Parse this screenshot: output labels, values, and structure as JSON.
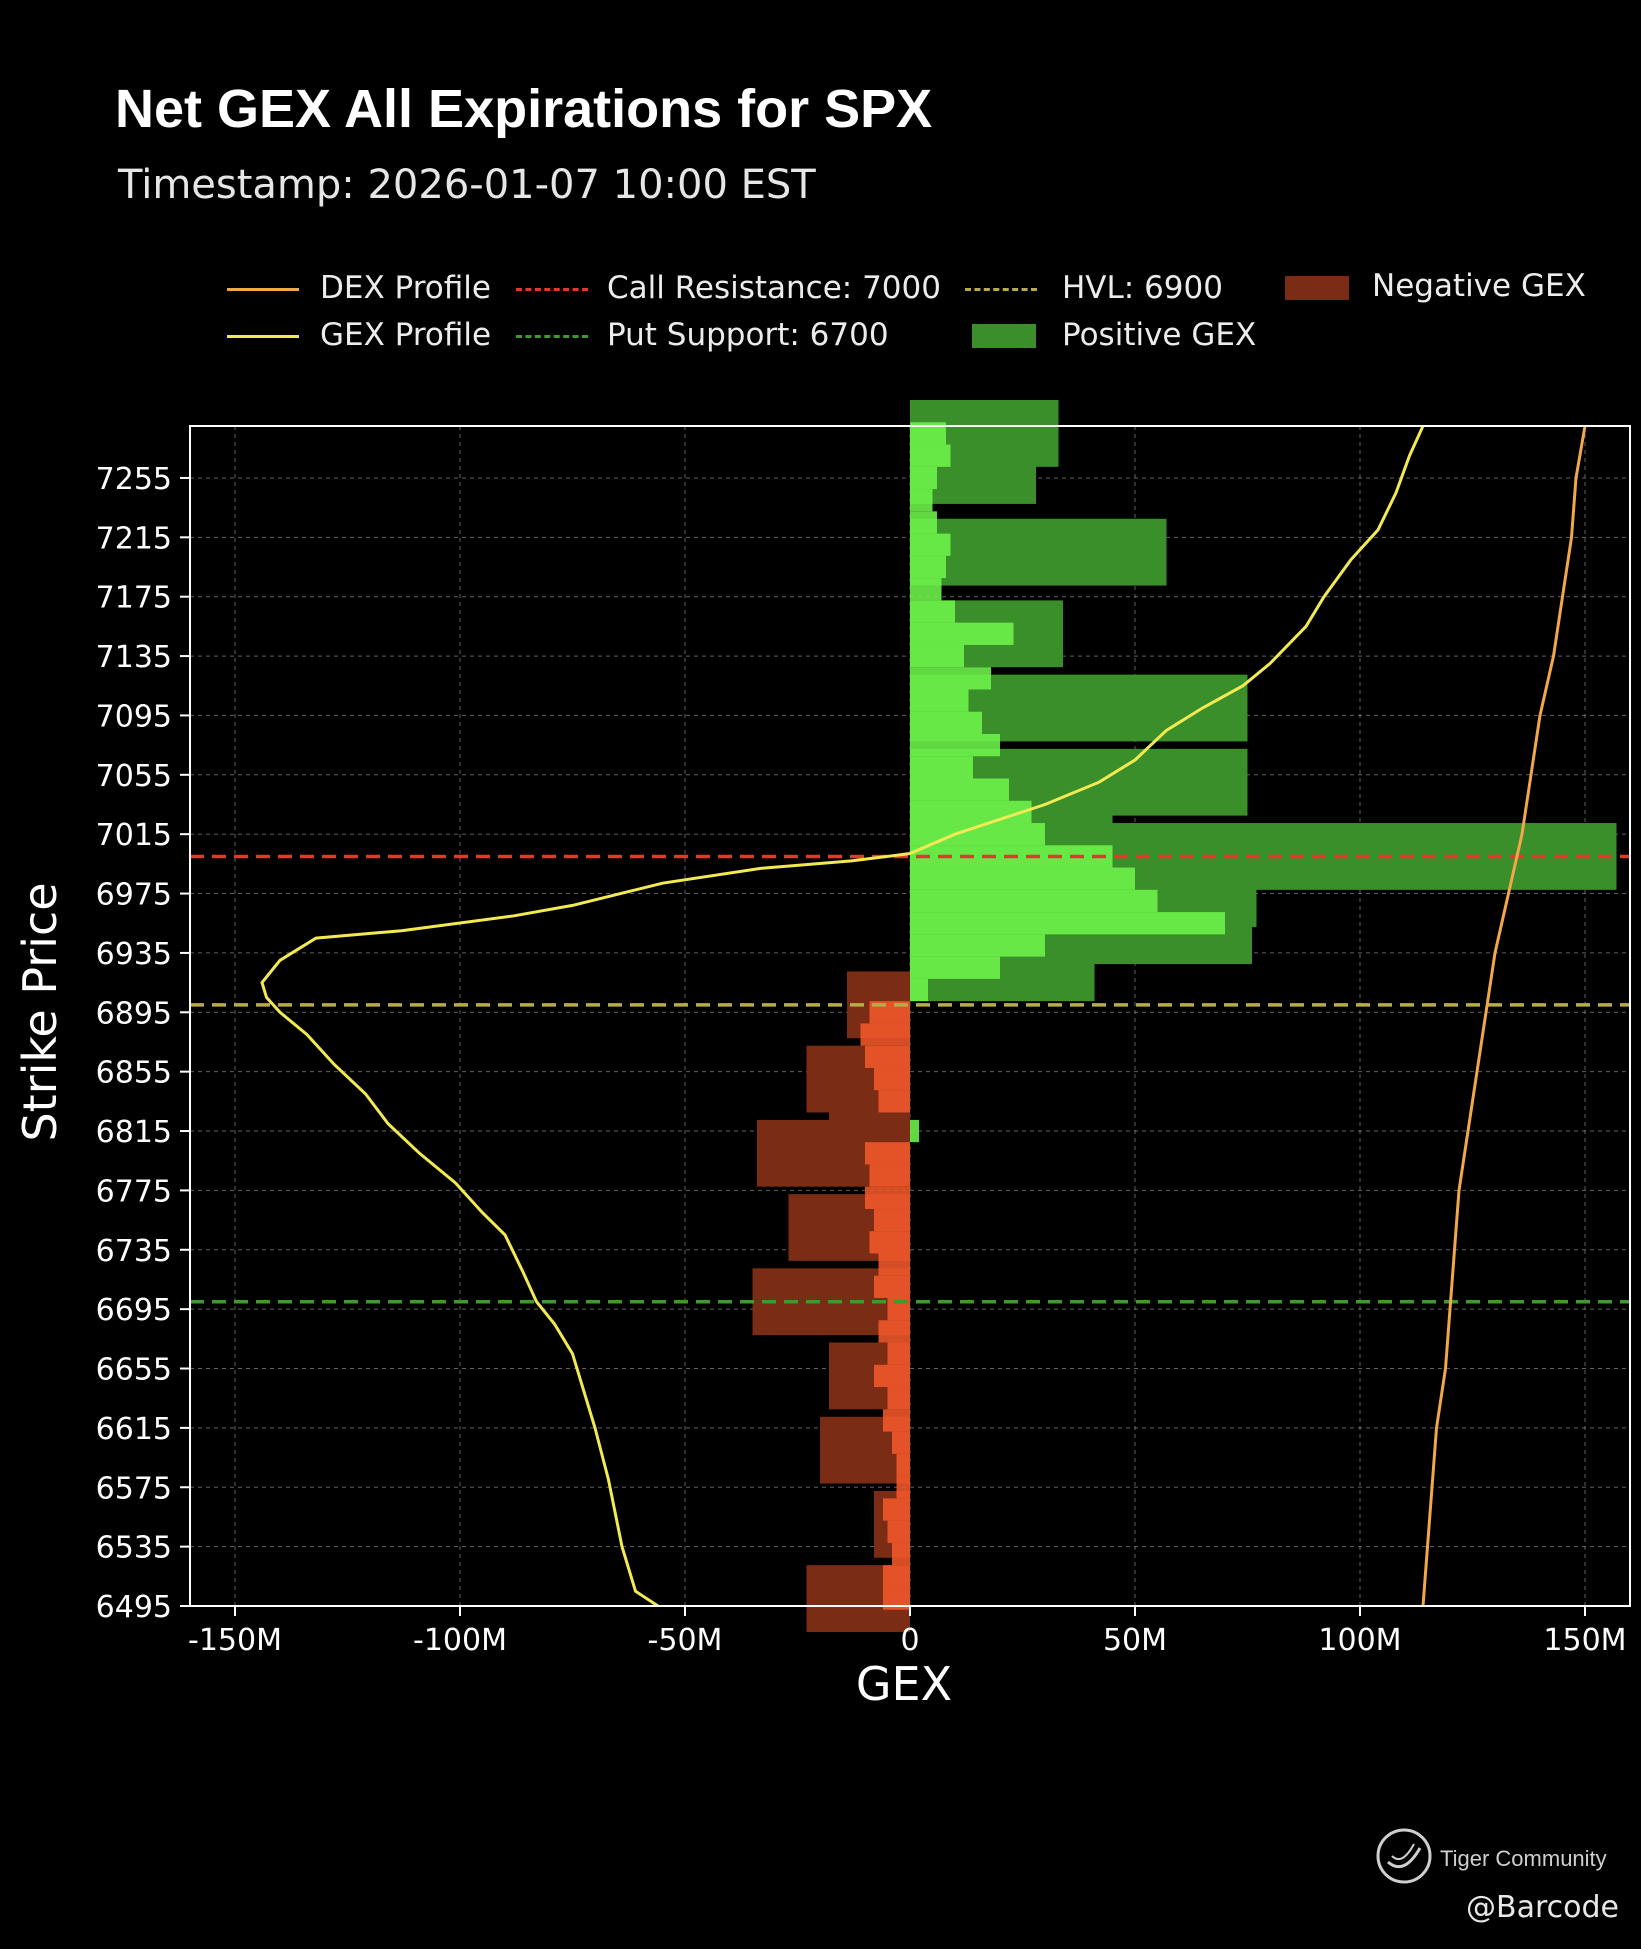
{
  "chart_data": {
    "type": "bar",
    "orientation": "horizontal",
    "title": "Net GEX All Expirations for SPX",
    "subtitle": "Timestamp: 2026-01-07 10:00 EST",
    "xlabel": "GEX",
    "ylabel": "Strike Price",
    "xlim": [
      -160000000,
      160000000
    ],
    "ylim": [
      6495,
      7290
    ],
    "x_ticks": [
      -150000000,
      -100000000,
      -50000000,
      0,
      50000000,
      100000000,
      150000000
    ],
    "x_tick_labels": [
      "-150M",
      "-100M",
      "-50M",
      "0",
      "50M",
      "100M",
      "150M"
    ],
    "y_ticks": [
      6495,
      6535,
      6575,
      6615,
      6655,
      6695,
      6735,
      6775,
      6815,
      6855,
      6895,
      6935,
      6975,
      7015,
      7055,
      7095,
      7135,
      7175,
      7215,
      7255
    ],
    "grid": true,
    "colors": {
      "positive_gex": "#3a8f2a",
      "positive_gex_near": "#6ef54a",
      "negative_gex": "#7a2c14",
      "negative_gex_near": "#f2582a",
      "dex_profile": "#f0a848",
      "gex_profile": "#f2ea52",
      "call_resistance": "#e03a2a",
      "put_support": "#3e9a2e",
      "hvl": "#b8ac4a",
      "background": "#000000",
      "axes_edge": "#ffffff"
    },
    "legend": {
      "placement": "top",
      "entries": [
        {
          "label": "DEX Profile",
          "kind": "line",
          "color": "#f0a848"
        },
        {
          "label": "GEX Profile",
          "kind": "line",
          "color": "#f2ea52"
        },
        {
          "label": "Call Resistance: 7000",
          "kind": "dashed",
          "color": "#e03a2a"
        },
        {
          "label": "Put Support: 6700",
          "kind": "dashed",
          "color": "#3e9a2e"
        },
        {
          "label": "HVL: 6900",
          "kind": "dashed",
          "color": "#b8ac4a"
        },
        {
          "label": "Positive GEX",
          "kind": "patch",
          "color": "#3a8f2a"
        },
        {
          "label": "Negative GEX",
          "kind": "patch",
          "color": "#7a2c14"
        }
      ]
    },
    "reference_lines": [
      {
        "name": "Call Resistance: 7000",
        "strike": 7000,
        "color": "#e03a2a"
      },
      {
        "name": "HVL: 6900",
        "strike": 6900,
        "color": "#b8ac4a"
      },
      {
        "name": "Put Support: 6700",
        "strike": 6700,
        "color": "#3e9a2e"
      }
    ],
    "bars_all_expirations": [
      {
        "strike": 7285,
        "gex": 33000000
      },
      {
        "strike": 7260,
        "gex": 28000000
      },
      {
        "strike": 7205,
        "gex": 57000000
      },
      {
        "strike": 7150,
        "gex": 34000000
      },
      {
        "strike": 7100,
        "gex": 75000000
      },
      {
        "strike": 7050,
        "gex": 75000000
      },
      {
        "strike": 7025,
        "gex": 45000000
      },
      {
        "strike": 7000,
        "gex": 157000000
      },
      {
        "strike": 6975,
        "gex": 77000000
      },
      {
        "strike": 6950,
        "gex": 76000000
      },
      {
        "strike": 6925,
        "gex": 41000000
      },
      {
        "strike": 6900,
        "gex": -14000000
      },
      {
        "strike": 6850,
        "gex": -23000000
      },
      {
        "strike": 6825,
        "gex": -18000000
      },
      {
        "strike": 6800,
        "gex": -34000000
      },
      {
        "strike": 6750,
        "gex": -27000000
      },
      {
        "strike": 6700,
        "gex": -35000000
      },
      {
        "strike": 6650,
        "gex": -18000000
      },
      {
        "strike": 6600,
        "gex": -20000000
      },
      {
        "strike": 6550,
        "gex": -8000000
      },
      {
        "strike": 6500,
        "gex": -23000000
      }
    ],
    "bars_near_term": [
      {
        "strike": 7285,
        "gex": 8000000
      },
      {
        "strike": 7270,
        "gex": 9000000
      },
      {
        "strike": 7255,
        "gex": 6000000
      },
      {
        "strike": 7240,
        "gex": 5000000
      },
      {
        "strike": 7225,
        "gex": 6000000
      },
      {
        "strike": 7210,
        "gex": 9000000
      },
      {
        "strike": 7195,
        "gex": 8000000
      },
      {
        "strike": 7180,
        "gex": 7000000
      },
      {
        "strike": 7165,
        "gex": 10000000
      },
      {
        "strike": 7150,
        "gex": 23000000
      },
      {
        "strike": 7135,
        "gex": 12000000
      },
      {
        "strike": 7120,
        "gex": 18000000
      },
      {
        "strike": 7105,
        "gex": 13000000
      },
      {
        "strike": 7090,
        "gex": 16000000
      },
      {
        "strike": 7075,
        "gex": 20000000
      },
      {
        "strike": 7060,
        "gex": 14000000
      },
      {
        "strike": 7045,
        "gex": 22000000
      },
      {
        "strike": 7030,
        "gex": 27000000
      },
      {
        "strike": 7015,
        "gex": 30000000
      },
      {
        "strike": 7000,
        "gex": 45000000
      },
      {
        "strike": 6985,
        "gex": 50000000
      },
      {
        "strike": 6970,
        "gex": 55000000
      },
      {
        "strike": 6955,
        "gex": 70000000
      },
      {
        "strike": 6940,
        "gex": 30000000
      },
      {
        "strike": 6925,
        "gex": 20000000
      },
      {
        "strike": 6910,
        "gex": 4000000
      },
      {
        "strike": 6895,
        "gex": -9000000
      },
      {
        "strike": 6880,
        "gex": -11000000
      },
      {
        "strike": 6865,
        "gex": -10000000
      },
      {
        "strike": 6850,
        "gex": -8000000
      },
      {
        "strike": 6835,
        "gex": -7000000
      },
      {
        "strike": 6815,
        "gex": 2000000
      },
      {
        "strike": 6800,
        "gex": -10000000
      },
      {
        "strike": 6785,
        "gex": -9000000
      },
      {
        "strike": 6770,
        "gex": -10000000
      },
      {
        "strike": 6755,
        "gex": -8000000
      },
      {
        "strike": 6740,
        "gex": -9000000
      },
      {
        "strike": 6725,
        "gex": -7000000
      },
      {
        "strike": 6710,
        "gex": -8000000
      },
      {
        "strike": 6695,
        "gex": -5000000
      },
      {
        "strike": 6680,
        "gex": -7000000
      },
      {
        "strike": 6665,
        "gex": -5000000
      },
      {
        "strike": 6650,
        "gex": -8000000
      },
      {
        "strike": 6635,
        "gex": -5000000
      },
      {
        "strike": 6620,
        "gex": -6000000
      },
      {
        "strike": 6605,
        "gex": -4000000
      },
      {
        "strike": 6590,
        "gex": -3000000
      },
      {
        "strike": 6575,
        "gex": -3000000
      },
      {
        "strike": 6560,
        "gex": -6000000
      },
      {
        "strike": 6545,
        "gex": -5000000
      },
      {
        "strike": 6530,
        "gex": -4000000
      },
      {
        "strike": 6515,
        "gex": -6000000
      },
      {
        "strike": 6500,
        "gex": -6000000
      }
    ],
    "series": [
      {
        "name": "GEX Profile",
        "color": "#f2ea52",
        "points": [
          [
            -56000000,
            6495
          ],
          [
            -61000000,
            6505
          ],
          [
            -64000000,
            6535
          ],
          [
            -67000000,
            6580
          ],
          [
            -70000000,
            6615
          ],
          [
            -73000000,
            6645
          ],
          [
            -75000000,
            6665
          ],
          [
            -79000000,
            6685
          ],
          [
            -83000000,
            6700
          ],
          [
            -86000000,
            6720
          ],
          [
            -90000000,
            6745
          ],
          [
            -95000000,
            6760
          ],
          [
            -101000000,
            6780
          ],
          [
            -109000000,
            6800
          ],
          [
            -116000000,
            6820
          ],
          [
            -121000000,
            6840
          ],
          [
            -128000000,
            6860
          ],
          [
            -134000000,
            6880
          ],
          [
            -140000000,
            6895
          ],
          [
            -143000000,
            6905
          ],
          [
            -144000000,
            6915
          ],
          [
            -140000000,
            6930
          ],
          [
            -132000000,
            6945
          ],
          [
            -113000000,
            6950
          ],
          [
            -88000000,
            6960
          ],
          [
            -75000000,
            6967
          ],
          [
            -55000000,
            6982
          ],
          [
            -33000000,
            6992
          ],
          [
            -13000000,
            6997
          ],
          [
            -5000000,
            7000
          ],
          [
            0,
            7002
          ],
          [
            10000000,
            7015
          ],
          [
            20000000,
            7025
          ],
          [
            30000000,
            7035
          ],
          [
            42000000,
            7050
          ],
          [
            50000000,
            7065
          ],
          [
            57000000,
            7085
          ],
          [
            65000000,
            7100
          ],
          [
            74000000,
            7115
          ],
          [
            80000000,
            7130
          ],
          [
            88000000,
            7155
          ],
          [
            92000000,
            7175
          ],
          [
            98000000,
            7200
          ],
          [
            104000000,
            7220
          ],
          [
            108000000,
            7245
          ],
          [
            111000000,
            7270
          ],
          [
            114000000,
            7290
          ]
        ]
      },
      {
        "name": "DEX Profile",
        "color": "#f0a848",
        "points": [
          [
            114000000,
            6495
          ],
          [
            115000000,
            6535
          ],
          [
            116000000,
            6575
          ],
          [
            117000000,
            6615
          ],
          [
            119000000,
            6655
          ],
          [
            120000000,
            6695
          ],
          [
            121000000,
            6735
          ],
          [
            122000000,
            6775
          ],
          [
            124000000,
            6815
          ],
          [
            126000000,
            6855
          ],
          [
            128000000,
            6895
          ],
          [
            130000000,
            6935
          ],
          [
            133000000,
            6975
          ],
          [
            136000000,
            7015
          ],
          [
            138000000,
            7055
          ],
          [
            140000000,
            7095
          ],
          [
            143000000,
            7135
          ],
          [
            145000000,
            7175
          ],
          [
            147000000,
            7215
          ],
          [
            148000000,
            7255
          ],
          [
            150000000,
            7290
          ]
        ]
      }
    ]
  },
  "watermark": {
    "brand": "Tiger Community",
    "author": "@Barcode"
  }
}
